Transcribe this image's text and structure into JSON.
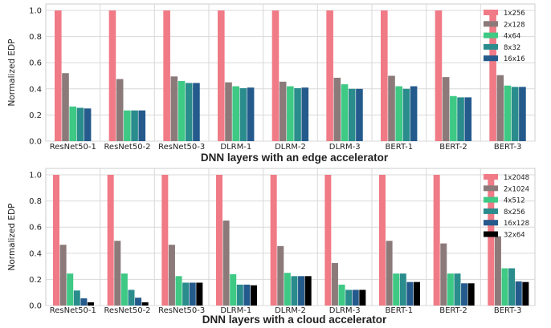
{
  "chart_data": [
    {
      "type": "bar",
      "title": "",
      "xlabel": "DNN layers with an edge accelerator",
      "ylabel": "Normalized EDP",
      "ylim": [
        0,
        1.0
      ],
      "yticks": [
        "0.0",
        "0.2",
        "0.4",
        "0.6",
        "0.8",
        "1.0"
      ],
      "grid": true,
      "legend_position": "top-right",
      "categories": [
        "ResNet50-1",
        "ResNet50-2",
        "ResNet50-3",
        "DLRM-1",
        "DLRM-2",
        "DLRM-3",
        "BERT-1",
        "BERT-2",
        "BERT-3"
      ],
      "series": [
        {
          "name": "1x256",
          "color": "#f07a86",
          "values": [
            1.0,
            1.0,
            1.0,
            1.0,
            1.0,
            1.0,
            1.0,
            1.0,
            1.0
          ]
        },
        {
          "name": "2x128",
          "color": "#8c7a7a",
          "values": [
            0.52,
            0.475,
            0.495,
            0.45,
            0.455,
            0.485,
            0.5,
            0.49,
            0.505
          ]
        },
        {
          "name": "4x64",
          "color": "#3ec985",
          "values": [
            0.265,
            0.235,
            0.46,
            0.42,
            0.42,
            0.435,
            0.42,
            0.345,
            0.425
          ]
        },
        {
          "name": "8x32",
          "color": "#2a8c8c",
          "values": [
            0.255,
            0.235,
            0.445,
            0.405,
            0.405,
            0.4,
            0.4,
            0.335,
            0.415
          ]
        },
        {
          "name": "16x16",
          "color": "#245a8c",
          "values": [
            0.25,
            0.235,
            0.445,
            0.41,
            0.41,
            0.4,
            0.42,
            0.335,
            0.415
          ]
        }
      ]
    },
    {
      "type": "bar",
      "title": "",
      "xlabel": "DNN layers with a cloud accelerator",
      "ylabel": "Normalized EDP",
      "ylim": [
        0,
        1.0
      ],
      "yticks": [
        "0.0",
        "0.2",
        "0.4",
        "0.6",
        "0.8",
        "1.0"
      ],
      "grid": true,
      "legend_position": "top-right",
      "categories": [
        "ResNet50-1",
        "ResNet50-2",
        "ResNet50-3",
        "DLRM-1",
        "DLRM-2",
        "DLRM-3",
        "BERT-1",
        "BERT-2",
        "BERT-3"
      ],
      "series": [
        {
          "name": "1x2048",
          "color": "#f07a86",
          "values": [
            1.0,
            1.0,
            1.0,
            1.0,
            1.0,
            1.0,
            1.0,
            1.0,
            1.0
          ]
        },
        {
          "name": "2x1024",
          "color": "#8c7a7a",
          "values": [
            0.465,
            0.495,
            0.465,
            0.65,
            0.455,
            0.325,
            0.495,
            0.475,
            0.53
          ]
        },
        {
          "name": "4x512",
          "color": "#3ec985",
          "values": [
            0.245,
            0.245,
            0.225,
            0.24,
            0.25,
            0.16,
            0.245,
            0.245,
            0.285
          ]
        },
        {
          "name": "8x256",
          "color": "#2a8c8c",
          "values": [
            0.115,
            0.12,
            0.175,
            0.16,
            0.225,
            0.12,
            0.245,
            0.245,
            0.285
          ]
        },
        {
          "name": "16x128",
          "color": "#245a8c",
          "values": [
            0.055,
            0.06,
            0.175,
            0.16,
            0.225,
            0.12,
            0.18,
            0.17,
            0.185
          ]
        },
        {
          "name": "32x64",
          "color": "#000000",
          "values": [
            0.025,
            0.025,
            0.175,
            0.155,
            0.225,
            0.12,
            0.18,
            0.17,
            0.18
          ]
        }
      ]
    }
  ]
}
